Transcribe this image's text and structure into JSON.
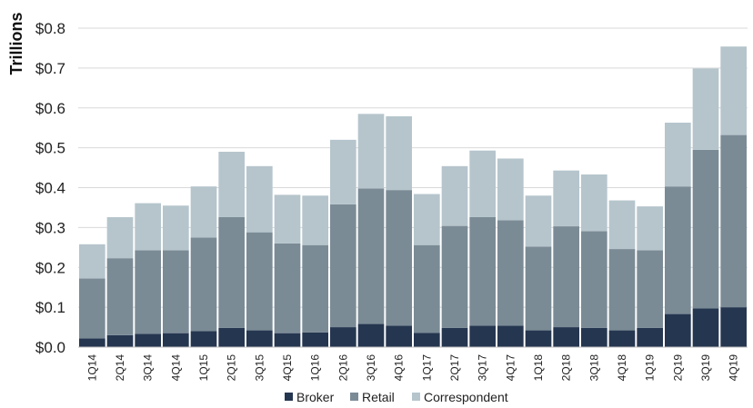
{
  "chart_data": {
    "type": "bar",
    "stacked": true,
    "ylabel": "Trillions",
    "xlabel": "",
    "ylim": [
      0,
      0.8
    ],
    "yticks": [
      "$0.0",
      "$0.1",
      "$0.2",
      "$0.3",
      "$0.4",
      "$0.5",
      "$0.6",
      "$0.7",
      "$0.8"
    ],
    "grid": true,
    "legend_position": "bottom",
    "categories": [
      "1Q14",
      "2Q14",
      "3Q14",
      "4Q14",
      "1Q15",
      "2Q15",
      "3Q15",
      "4Q15",
      "1Q16",
      "2Q16",
      "3Q16",
      "4Q16",
      "1Q17",
      "2Q17",
      "3Q17",
      "4Q17",
      "1Q18",
      "2Q18",
      "3Q18",
      "4Q18",
      "1Q19",
      "2Q19",
      "3Q19",
      "4Q19"
    ],
    "series": [
      {
        "name": "Broker",
        "color": "#253650",
        "values": [
          0.022,
          0.03,
          0.033,
          0.035,
          0.04,
          0.048,
          0.042,
          0.035,
          0.037,
          0.05,
          0.058,
          0.054,
          0.036,
          0.048,
          0.054,
          0.054,
          0.042,
          0.05,
          0.048,
          0.042,
          0.048,
          0.083,
          0.097,
          0.1
        ]
      },
      {
        "name": "Retail",
        "color": "#7b8b96",
        "values": [
          0.15,
          0.193,
          0.21,
          0.208,
          0.235,
          0.278,
          0.246,
          0.225,
          0.219,
          0.308,
          0.34,
          0.34,
          0.22,
          0.256,
          0.272,
          0.264,
          0.21,
          0.253,
          0.243,
          0.204,
          0.195,
          0.32,
          0.398,
          0.432
        ]
      },
      {
        "name": "Correspondent",
        "color": "#b6c5cc",
        "values": [
          0.086,
          0.103,
          0.118,
          0.112,
          0.128,
          0.164,
          0.166,
          0.122,
          0.124,
          0.162,
          0.187,
          0.185,
          0.128,
          0.15,
          0.167,
          0.155,
          0.128,
          0.14,
          0.142,
          0.122,
          0.11,
          0.16,
          0.204,
          0.222
        ]
      }
    ]
  }
}
